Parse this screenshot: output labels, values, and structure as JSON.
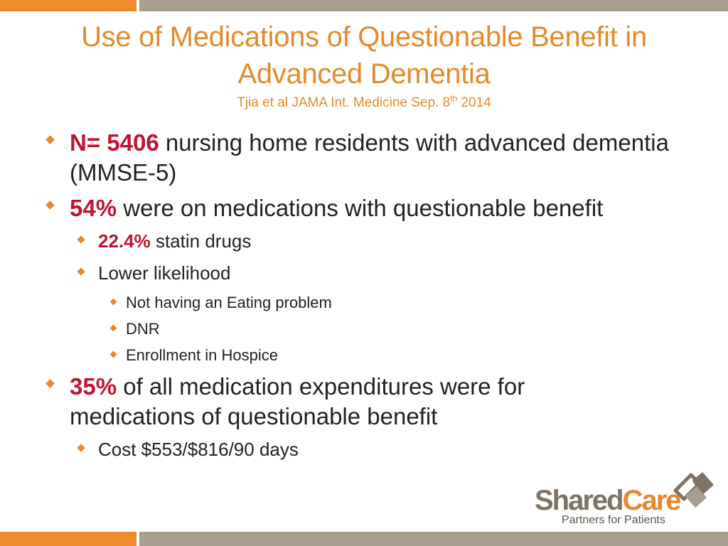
{
  "title": {
    "line1": "Use of Medications of Questionable Benefit in",
    "line2": "Advanced Dementia",
    "subtitle_pre": "Tjia et al JAMA Int. Medicine Sep. 8",
    "subtitle_sup": "th",
    "subtitle_post": " 2014"
  },
  "bullets": {
    "b1": {
      "highlight": "N= 5406",
      "text": " nursing home residents with advanced dementia  (MMSE-5)"
    },
    "b2": {
      "highlight": "54%",
      "text": " were on medications with questionable benefit"
    },
    "b2_1": {
      "highlight": "22.4%",
      "text": " statin drugs"
    },
    "b2_2": {
      "text": "Lower likelihood"
    },
    "b2_2_1": {
      "text": "Not having an Eating problem"
    },
    "b2_2_2": {
      "text": "DNR"
    },
    "b2_2_3": {
      "text": "Enrollment in Hospice"
    },
    "b3": {
      "highlight": "35%",
      "text": " of all medication expenditures were for medications of questionable benefit"
    },
    "b3_1": {
      "text": "Cost $553/$816/90 days"
    }
  },
  "logo": {
    "shared": "Shared",
    "care": "Care",
    "tagline": "Partners for Patients"
  },
  "colors": {
    "accent_orange": "#e58a2b",
    "highlight_red": "#c0152f",
    "bar_gray": "#a89e8f",
    "logo_gray": "#7d7363"
  }
}
